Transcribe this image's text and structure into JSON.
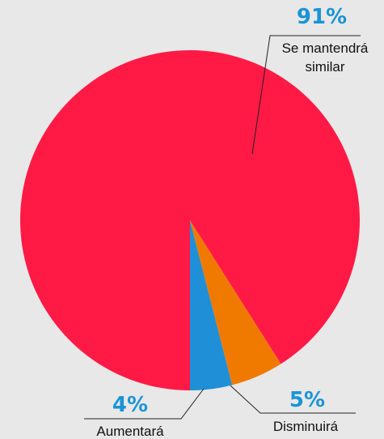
{
  "chart_data": {
    "type": "pie",
    "title": "",
    "slices": [
      {
        "label_lines": [
          "Se mantendrá",
          "similar"
        ],
        "value": 91,
        "value_label": "91%",
        "color": "#ff1a46"
      },
      {
        "label_lines": [
          "Aumentará"
        ],
        "value": 4,
        "value_label": "4%",
        "color": "#1f8fd8"
      },
      {
        "label_lines": [
          "Disminuirá"
        ],
        "value": 5,
        "value_label": "5%",
        "color": "#f07a00"
      }
    ],
    "label_color": "#1a94d6",
    "legend": "none",
    "grid": false
  }
}
